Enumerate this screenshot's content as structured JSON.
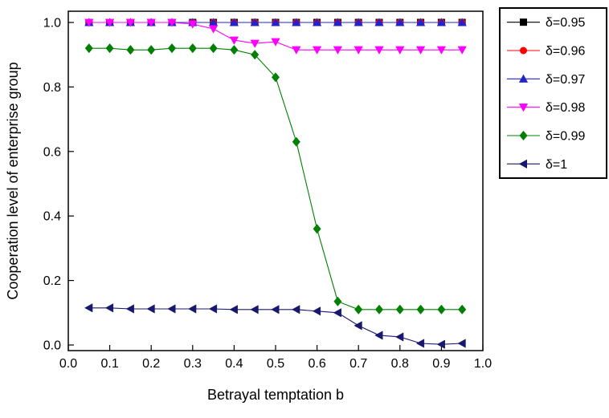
{
  "chart_data": {
    "type": "line",
    "xlabel": "Betrayal temptation b",
    "ylabel": "Cooperation level of enterprise group",
    "xlim": [
      0.0,
      1.0
    ],
    "ylim": [
      0.0,
      1.0
    ],
    "x_tick_labels": [
      "0.0",
      "0.1",
      "0.2",
      "0.3",
      "0.4",
      "0.5",
      "0.6",
      "0.7",
      "0.8",
      "0.9",
      "1.0"
    ],
    "y_tick_labels": [
      "0.0",
      "0.2",
      "0.4",
      "0.6",
      "0.8",
      "1.0"
    ],
    "grid": false,
    "legend_position": "outside-top-right",
    "x": [
      0.05,
      0.1,
      0.15,
      0.2,
      0.25,
      0.3,
      0.35,
      0.4,
      0.45,
      0.5,
      0.55,
      0.6,
      0.65,
      0.7,
      0.75,
      0.8,
      0.85,
      0.9,
      0.95
    ],
    "series": [
      {
        "name": "δ=0.95",
        "marker": "square",
        "color": "#000000",
        "values": [
          1.0,
          1.0,
          1.0,
          1.0,
          1.0,
          1.0,
          1.0,
          1.0,
          1.0,
          1.0,
          1.0,
          1.0,
          1.0,
          1.0,
          1.0,
          1.0,
          1.0,
          1.0,
          1.0
        ]
      },
      {
        "name": "δ=0.96",
        "marker": "circle",
        "color": "#ff0000",
        "values": [
          1.0,
          1.0,
          1.0,
          1.0,
          1.0,
          1.0,
          1.0,
          1.0,
          1.0,
          1.0,
          1.0,
          1.0,
          1.0,
          1.0,
          1.0,
          1.0,
          1.0,
          1.0,
          1.0
        ]
      },
      {
        "name": "δ=0.97",
        "marker": "triangle-up",
        "color": "#2323cd",
        "values": [
          1.0,
          1.0,
          1.0,
          1.0,
          1.0,
          1.0,
          1.0,
          1.0,
          1.0,
          1.0,
          1.0,
          1.0,
          1.0,
          1.0,
          1.0,
          1.0,
          1.0,
          1.0,
          1.0
        ]
      },
      {
        "name": "δ=0.98",
        "marker": "triangle-down",
        "color": "#ff00ff",
        "values": [
          1.0,
          1.0,
          1.0,
          1.0,
          1.0,
          0.995,
          0.98,
          0.945,
          0.935,
          0.94,
          0.915,
          0.915,
          0.915,
          0.915,
          0.915,
          0.915,
          0.915,
          0.915,
          0.915
        ]
      },
      {
        "name": "δ=0.99",
        "marker": "diamond",
        "color": "#008000",
        "values": [
          0.92,
          0.92,
          0.915,
          0.915,
          0.92,
          0.92,
          0.92,
          0.915,
          0.9,
          0.83,
          0.63,
          0.36,
          0.135,
          0.11,
          0.11,
          0.11,
          0.11,
          0.11,
          0.11
        ]
      },
      {
        "name": "δ=1",
        "marker": "triangle-left",
        "color": "#18186e",
        "values": [
          0.115,
          0.115,
          0.112,
          0.112,
          0.112,
          0.112,
          0.112,
          0.11,
          0.11,
          0.11,
          0.11,
          0.105,
          0.1,
          0.06,
          0.03,
          0.025,
          0.005,
          0.002,
          0.005
        ]
      }
    ]
  }
}
